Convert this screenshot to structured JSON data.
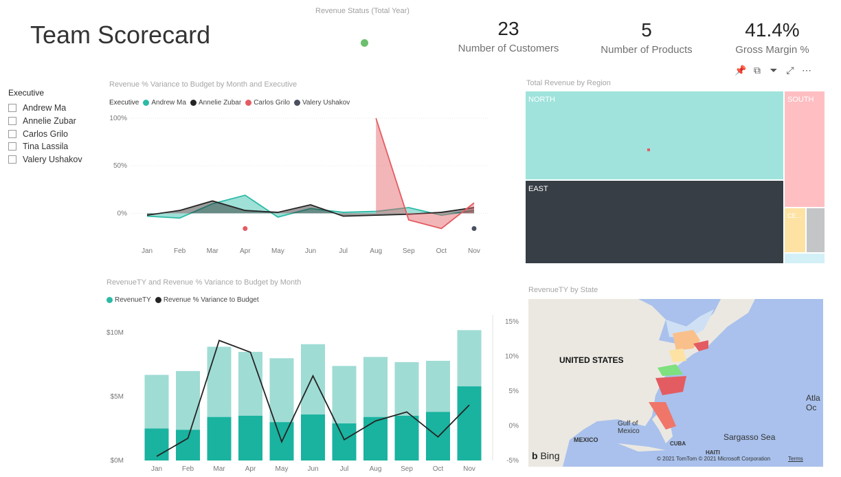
{
  "header": {
    "title": "Team Scorecard",
    "revenue_status_label": "Revenue Status (Total Year)",
    "status_color": "#6cbf6c"
  },
  "kpis": [
    {
      "value": "23",
      "label": "Number of Customers"
    },
    {
      "value": "5",
      "label": "Number of Products"
    },
    {
      "value": "41.4%",
      "label": "Gross Margin %"
    }
  ],
  "slicer": {
    "header": "Executive",
    "items": [
      "Andrew Ma",
      "Annelie Zubar",
      "Carlos Grilo",
      "Tina Lassila",
      "Valery Ushakov"
    ]
  },
  "visual_header_icons": [
    "pin-icon",
    "copy-icon",
    "filter-icon",
    "focus-mode-icon",
    "more-options-icon"
  ],
  "chart_data": [
    {
      "type": "line",
      "title": "Revenue % Variance to Budget by Month and Executive",
      "legend_title": "Executive",
      "legend_position": "top-left",
      "categories": [
        "Jan",
        "Feb",
        "Mar",
        "Apr",
        "May",
        "Jun",
        "Jul",
        "Aug",
        "Sep",
        "Oct",
        "Nov"
      ],
      "y_ticks": [
        "100%",
        "50%",
        "0%"
      ],
      "ylim": [
        -20,
        100
      ],
      "series": [
        {
          "name": "Andrew Ma",
          "color": "#2bbaa6",
          "values": [
            -3,
            -5,
            10,
            19,
            -4,
            5,
            1,
            2,
            6,
            -2,
            3
          ]
        },
        {
          "name": "Annelie Zubar",
          "color": "#252423",
          "values": [
            -2,
            3,
            13,
            3,
            1,
            9,
            -3,
            -2,
            -1,
            1,
            6
          ]
        },
        {
          "name": "Carlos Grilo",
          "color": "#e35c62",
          "values": [
            null,
            null,
            null,
            -16,
            null,
            null,
            null,
            100,
            -7,
            -16,
            11
          ]
        },
        {
          "name": "Valery Ushakov",
          "color": "#4a5060",
          "values": [
            null,
            null,
            null,
            null,
            null,
            null,
            null,
            null,
            null,
            null,
            -16
          ]
        }
      ]
    },
    {
      "type": "bar",
      "title": "RevenueTY and Revenue % Variance to Budget by Month",
      "legend_position": "top-left",
      "categories": [
        "Jan",
        "Feb",
        "Mar",
        "Apr",
        "May",
        "Jun",
        "Jul",
        "Aug",
        "Sep",
        "Oct",
        "Nov"
      ],
      "y_ticks_left": [
        "$10M",
        "$5M",
        "$0M"
      ],
      "y_ticks_right": [
        "15%",
        "10%",
        "5%",
        "0%",
        "-5%"
      ],
      "ylim_left": [
        0,
        11.4
      ],
      "ylim_right": [
        -5,
        16
      ],
      "series": [
        {
          "name": "RevenueTY",
          "color": "#2bbaa6",
          "values": [
            6.7,
            7.0,
            8.9,
            8.5,
            8.0,
            9.1,
            7.4,
            8.1,
            7.7,
            7.8,
            10.2
          ],
          "lower_values": [
            2.5,
            2.4,
            3.4,
            3.5,
            3.0,
            3.6,
            2.9,
            3.4,
            3.5,
            3.8,
            5.8
          ]
        },
        {
          "name": "Revenue % Variance to Budget",
          "color": "#252423",
          "values": [
            -4.4,
            -1.8,
            12.3,
            10.6,
            -2.3,
            7.2,
            -2.0,
            0.7,
            2.0,
            -1.6,
            3.0
          ]
        }
      ]
    },
    {
      "type": "treemap",
      "title": "Total Revenue by Region",
      "regions": [
        {
          "name": "NORTH",
          "color": "#9fe3dc"
        },
        {
          "name": "EAST",
          "color": "#373e45"
        },
        {
          "name": "SOUTH",
          "color": "#ffbec2"
        },
        {
          "name": "CE...",
          "color": "#fde2a3"
        },
        {
          "name": "",
          "color": "#c4c5c7"
        },
        {
          "name": "",
          "color": "#d3f0f6"
        }
      ]
    }
  ],
  "map": {
    "title": "RevenueTY by State",
    "labels": {
      "country": "UNITED STATES",
      "gulf": "Gulf of\nMexico",
      "mexico": "MEXICO",
      "cuba": "CUBA",
      "haiti": "HAITI",
      "sargasso": "Sargasso Sea",
      "atlantic": "Atla\nOc",
      "bing": "Bing",
      "copyright": "© 2021 TomTom © 2021 Microsoft Corporation",
      "terms": "Terms"
    }
  }
}
